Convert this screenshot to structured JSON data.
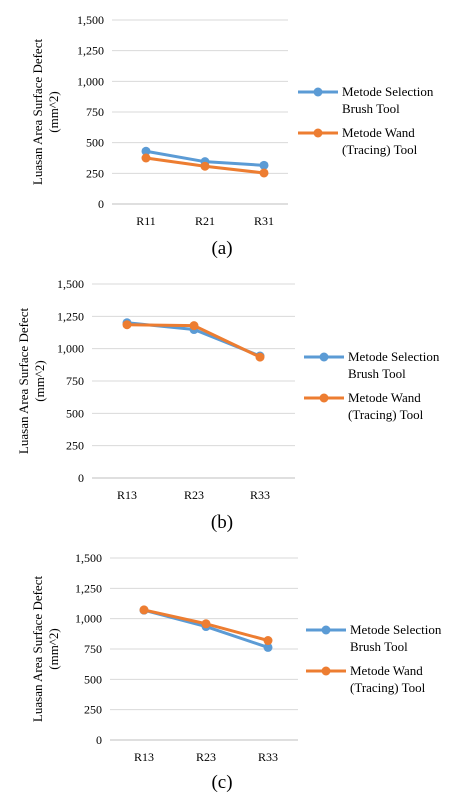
{
  "chart_data": [
    {
      "type": "line",
      "caption": "(a)",
      "categories": [
        "R11",
        "R21",
        "R31"
      ],
      "series": [
        {
          "name": [
            "Metode Selection",
            "Brush Tool"
          ],
          "color": "#5B9BD5",
          "values": [
            430,
            345,
            315
          ]
        },
        {
          "name": [
            "Metode Wand",
            "(Tracing) Tool"
          ],
          "color": "#ED7D31",
          "values": [
            375,
            308,
            253
          ]
        }
      ],
      "ylabel": [
        "Luasan Area Surface Defect",
        "(mm^2)"
      ],
      "ylim": [
        0,
        1500
      ],
      "yticks": [
        0,
        250,
        500,
        750,
        1000,
        1250,
        1500
      ],
      "ytick_labels": [
        "0",
        "250",
        "500",
        "750",
        "1,000",
        "1,250",
        "1,500"
      ],
      "grid": true,
      "legend": "right"
    },
    {
      "type": "line",
      "caption": "(b)",
      "categories": [
        "R13",
        "R23",
        "R33"
      ],
      "series": [
        {
          "name": [
            "Metode Selection",
            "Brush Tool"
          ],
          "color": "#5B9BD5",
          "values": [
            1200,
            1148,
            943
          ]
        },
        {
          "name": [
            "Metode Wand",
            "(Tracing) Tool"
          ],
          "color": "#ED7D31",
          "values": [
            1185,
            1178,
            935
          ]
        }
      ],
      "ylabel": [
        "Luasan Area Surface Defect",
        "(mm^2)"
      ],
      "ylim": [
        0,
        1500
      ],
      "yticks": [
        0,
        250,
        500,
        750,
        1000,
        1250,
        1500
      ],
      "ytick_labels": [
        "0",
        "250",
        "500",
        "750",
        "1,000",
        "1,250",
        "1,500"
      ],
      "grid": true,
      "legend": "right"
    },
    {
      "type": "line",
      "caption": "(c)",
      "categories": [
        "R13",
        "R23",
        "R33"
      ],
      "series": [
        {
          "name": [
            "Metode Selection",
            "Brush Tool"
          ],
          "color": "#5B9BD5",
          "values": [
            1070,
            935,
            763
          ]
        },
        {
          "name": [
            "Metode Wand",
            "(Tracing) Tool"
          ],
          "color": "#ED7D31",
          "values": [
            1072,
            958,
            820
          ]
        }
      ],
      "ylabel": [
        "Luasan Area Surface Defect",
        "(mm^2)"
      ],
      "ylim": [
        0,
        1500
      ],
      "yticks": [
        0,
        250,
        500,
        750,
        1000,
        1250,
        1500
      ],
      "ytick_labels": [
        "0",
        "250",
        "500",
        "750",
        "1,000",
        "1,250",
        "1,500"
      ],
      "grid": true,
      "legend": "right"
    }
  ]
}
